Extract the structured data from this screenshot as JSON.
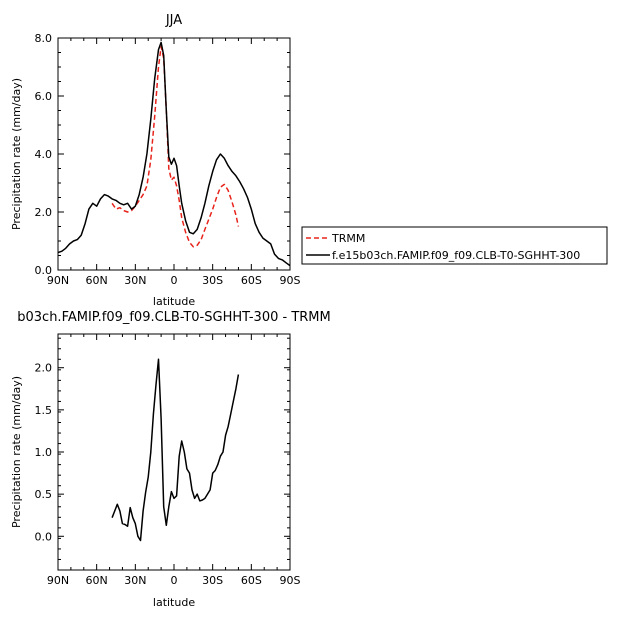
{
  "chart_data": [
    {
      "type": "line",
      "title": "JJA",
      "xlabel": "latitude",
      "ylabel": "Precipitation rate (mm/day)",
      "xlim": [
        90,
        -90
      ],
      "ylim": [
        0,
        8
      ],
      "x_ticks": [
        "90N",
        "60N",
        "30N",
        "0",
        "30S",
        "60S",
        "90S"
      ],
      "y_ticks": [
        "0.0",
        "2.0",
        "4.0",
        "6.0",
        "8.0"
      ],
      "grid": false,
      "legend_position": "outside-right",
      "series": [
        {
          "name": "TRMM",
          "color": "#e8231c",
          "dash": "dashed",
          "x": [
            48,
            45,
            42,
            39,
            36,
            33,
            30,
            27,
            24,
            21,
            18,
            15,
            12,
            10,
            8,
            6,
            4,
            2,
            0,
            -2,
            -4,
            -6,
            -9,
            -12,
            -15,
            -18,
            -21,
            -24,
            -27,
            -30,
            -33,
            -36,
            -39,
            -42,
            -45,
            -48,
            -50
          ],
          "y": [
            2.3,
            2.1,
            2.15,
            2.05,
            2.0,
            2.05,
            2.2,
            2.4,
            2.6,
            2.9,
            3.8,
            5.3,
            7.0,
            7.7,
            7.3,
            5.5,
            3.5,
            3.1,
            3.2,
            2.9,
            2.4,
            1.8,
            1.3,
            0.95,
            0.8,
            0.85,
            1.05,
            1.4,
            1.75,
            2.1,
            2.5,
            2.85,
            2.95,
            2.75,
            2.35,
            1.9,
            1.5
          ]
        },
        {
          "name": "f.e15b03ch.FAMIP.f09_f09.CLB-T0-SGHHT-300",
          "color": "#000000",
          "dash": "solid",
          "x": [
            90,
            87,
            84,
            81,
            78,
            75,
            72,
            69,
            66,
            63,
            60,
            57,
            54,
            51,
            48,
            45,
            42,
            39,
            36,
            33,
            30,
            27,
            24,
            21,
            18,
            15,
            12,
            10,
            8,
            6,
            4,
            2,
            0,
            -2,
            -4,
            -6,
            -9,
            -12,
            -15,
            -18,
            -21,
            -24,
            -27,
            -30,
            -33,
            -36,
            -39,
            -42,
            -45,
            -48,
            -51,
            -54,
            -57,
            -60,
            -63,
            -66,
            -69,
            -72,
            -75,
            -78,
            -81,
            -84,
            -87,
            -90
          ],
          "y": [
            0.6,
            0.65,
            0.75,
            0.9,
            1.0,
            1.05,
            1.2,
            1.6,
            2.1,
            2.3,
            2.2,
            2.45,
            2.6,
            2.55,
            2.45,
            2.4,
            2.3,
            2.25,
            2.3,
            2.1,
            2.2,
            2.6,
            3.2,
            4.0,
            5.2,
            6.6,
            7.6,
            7.85,
            7.4,
            5.5,
            3.9,
            3.65,
            3.85,
            3.6,
            2.9,
            2.3,
            1.7,
            1.3,
            1.25,
            1.4,
            1.8,
            2.3,
            2.9,
            3.4,
            3.8,
            4.0,
            3.85,
            3.6,
            3.4,
            3.25,
            3.05,
            2.8,
            2.5,
            2.1,
            1.6,
            1.3,
            1.1,
            1.0,
            0.9,
            0.55,
            0.4,
            0.35,
            0.25,
            0.15
          ]
        }
      ]
    },
    {
      "type": "line",
      "title": "b03ch.FAMIP.f09_f09.CLB-T0-SGHHT-300 - TRMM",
      "xlabel": "latitude",
      "ylabel": "Precipitation rate (mm/day)",
      "xlim": [
        90,
        -90
      ],
      "ylim": [
        -0.4,
        2.4
      ],
      "x_ticks": [
        "90N",
        "60N",
        "30N",
        "0",
        "30S",
        "60S",
        "90S"
      ],
      "y_ticks": [
        "0.0",
        "0.5",
        "1.0",
        "1.5",
        "2.0"
      ],
      "grid": false,
      "series": [
        {
          "color": "#000000",
          "x": [
            48,
            46,
            44,
            42,
            40,
            38,
            36,
            34,
            32,
            30,
            28,
            26,
            24,
            22,
            20,
            18,
            16,
            14,
            12,
            10,
            8,
            6,
            4,
            2,
            0,
            -2,
            -4,
            -6,
            -8,
            -10,
            -12,
            -14,
            -16,
            -18,
            -20,
            -22,
            -24,
            -26,
            -28,
            -30,
            -32,
            -34,
            -36,
            -38,
            -40,
            -42,
            -44,
            -46,
            -48,
            -50
          ],
          "y": [
            0.22,
            0.3,
            0.38,
            0.3,
            0.15,
            0.14,
            0.12,
            0.34,
            0.22,
            0.15,
            0.0,
            -0.05,
            0.3,
            0.52,
            0.7,
            1.0,
            1.45,
            1.8,
            2.1,
            1.4,
            0.35,
            0.13,
            0.35,
            0.53,
            0.45,
            0.48,
            0.95,
            1.13,
            1.0,
            0.8,
            0.75,
            0.55,
            0.45,
            0.5,
            0.42,
            0.43,
            0.45,
            0.5,
            0.55,
            0.75,
            0.78,
            0.85,
            0.95,
            1.0,
            1.2,
            1.3,
            1.45,
            1.6,
            1.75,
            1.92
          ]
        }
      ]
    }
  ]
}
